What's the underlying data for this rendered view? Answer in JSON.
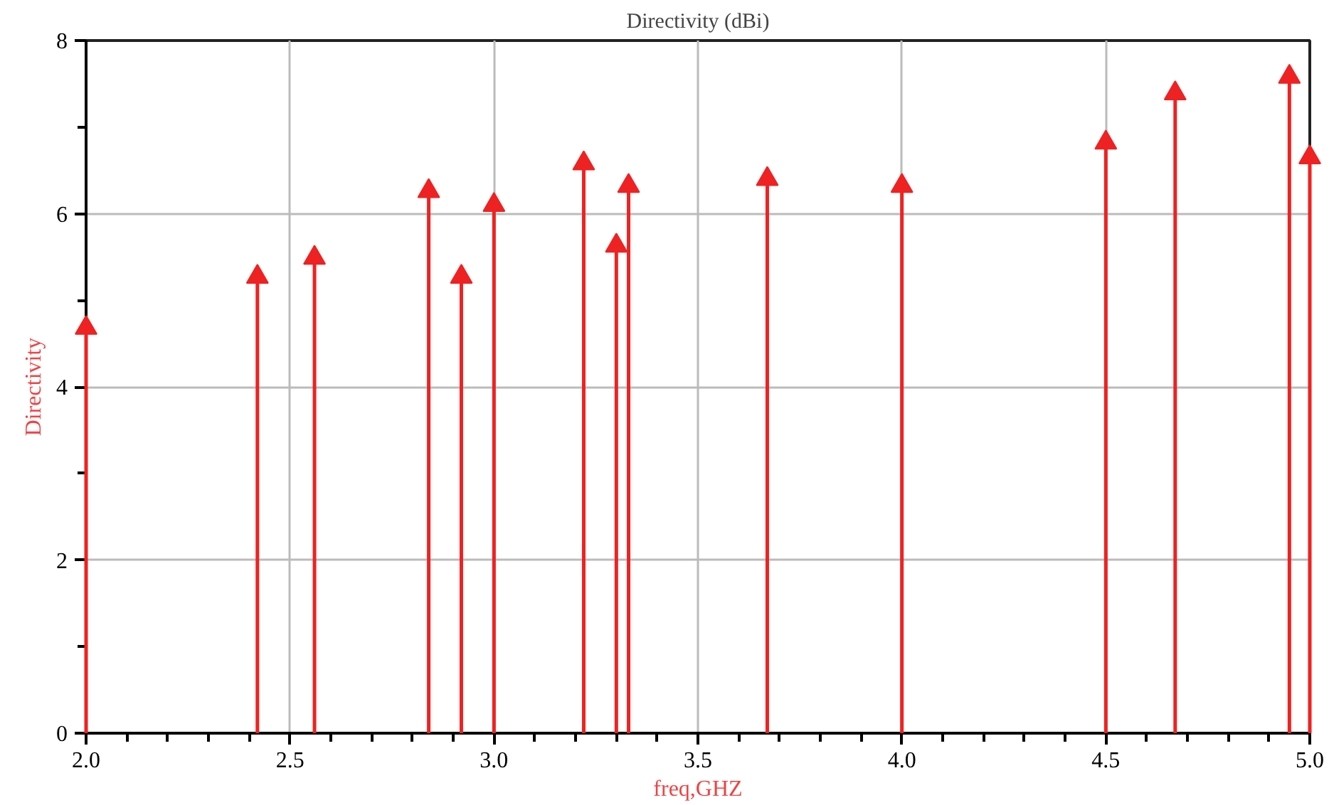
{
  "chart_data": {
    "type": "lollipop",
    "title": "Directivity (dBi)",
    "xlabel": "freq,GHZ",
    "ylabel": "Directivity",
    "x": [
      2.0,
      2.42,
      2.56,
      2.84,
      2.92,
      3.0,
      3.22,
      3.3,
      3.33,
      3.67,
      4.0,
      4.5,
      4.67,
      4.95,
      5.0
    ],
    "series": [
      {
        "color": "#ee2222",
        "values": [
          4.68,
          5.27,
          5.49,
          6.26,
          5.27,
          6.1,
          6.58,
          5.63,
          6.32,
          6.4,
          6.32,
          6.82,
          7.39,
          7.58,
          6.65
        ]
      }
    ],
    "xlim": [
      2.0,
      5.0
    ],
    "ylim": [
      0,
      8
    ],
    "xticks": [
      {
        "value": 2.0,
        "label": "2.0"
      },
      {
        "value": 2.1,
        "label": null
      },
      {
        "value": 2.2,
        "label": null
      },
      {
        "value": 2.3,
        "label": null
      },
      {
        "value": 2.4,
        "label": null
      },
      {
        "value": 2.5,
        "label": "2.5"
      },
      {
        "value": 2.6,
        "label": null
      },
      {
        "value": 2.7,
        "label": null
      },
      {
        "value": 2.8,
        "label": null
      },
      {
        "value": 2.9,
        "label": null
      },
      {
        "value": 3.0,
        "label": "3.0"
      },
      {
        "value": 3.1,
        "label": null
      },
      {
        "value": 3.2,
        "label": null
      },
      {
        "value": 3.3,
        "label": null
      },
      {
        "value": 3.4,
        "label": null
      },
      {
        "value": 3.5,
        "label": "3.5"
      },
      {
        "value": 3.6,
        "label": null
      },
      {
        "value": 3.7,
        "label": null
      },
      {
        "value": 3.8,
        "label": null
      },
      {
        "value": 3.9,
        "label": null
      },
      {
        "value": 4.0,
        "label": "4.0"
      },
      {
        "value": 4.1,
        "label": null
      },
      {
        "value": 4.2,
        "label": null
      },
      {
        "value": 4.3,
        "label": null
      },
      {
        "value": 4.4,
        "label": null
      },
      {
        "value": 4.5,
        "label": "4.5"
      },
      {
        "value": 4.6,
        "label": null
      },
      {
        "value": 4.7,
        "label": null
      },
      {
        "value": 4.8,
        "label": null
      },
      {
        "value": 4.9,
        "label": null
      },
      {
        "value": 5.0,
        "label": "5.0"
      }
    ],
    "yticks": [
      0,
      {
        "value": 1,
        "label": null
      },
      2,
      {
        "value": 3,
        "label": null
      },
      4,
      {
        "value": 5,
        "label": null
      },
      6,
      {
        "value": 7,
        "label": null
      },
      8
    ],
    "grid": true,
    "marker": "triangle"
  }
}
